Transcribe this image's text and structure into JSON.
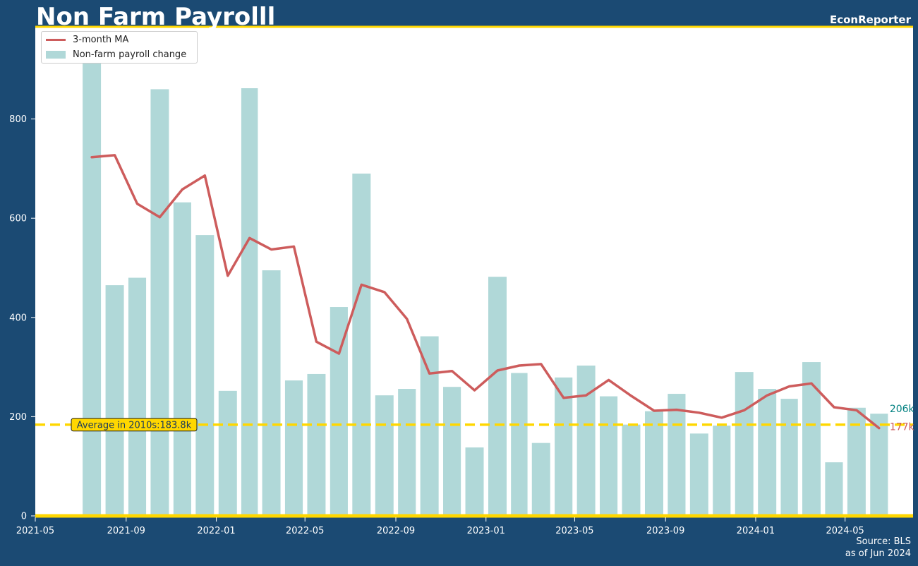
{
  "header": {
    "title": "Non Farm Payrolll",
    "brand": "EconReporter"
  },
  "footer": {
    "source": "Source: BLS",
    "asof": "as of Jun 2024"
  },
  "colors": {
    "background": "#1b4a73",
    "plot_area": "#ffffff",
    "bars": "#b0d8d8",
    "moving_average": "#cd5c5c",
    "average_line": "#ffd700",
    "last_bar_label": "#008080",
    "last_ma_label": "#cd5c5c"
  },
  "chart_data": {
    "type": "bar",
    "title": "Non Farm Payrolll",
    "xlabel": "",
    "ylabel": "",
    "ylim": [
      0,
      970
    ],
    "yticks": [
      0,
      200,
      400,
      600,
      800
    ],
    "xlim": [
      "2021-05-01",
      "2024-08-01"
    ],
    "xticks": [
      "2021-05",
      "2021-09",
      "2022-01",
      "2022-05",
      "2022-09",
      "2023-01",
      "2023-05",
      "2023-09",
      "2024-01",
      "2024-05"
    ],
    "grid": false,
    "legend_position": "top-left",
    "categories": [
      "2021-07",
      "2021-08",
      "2021-09",
      "2021-10",
      "2021-11",
      "2021-12",
      "2022-01",
      "2022-02",
      "2022-03",
      "2022-04",
      "2022-05",
      "2022-06",
      "2022-07",
      "2022-08",
      "2022-09",
      "2022-10",
      "2022-11",
      "2022-12",
      "2023-01",
      "2023-02",
      "2023-03",
      "2023-04",
      "2023-05",
      "2023-06",
      "2023-07",
      "2023-08",
      "2023-09",
      "2023-10",
      "2023-11",
      "2023-12",
      "2024-01",
      "2024-02",
      "2024-03",
      "2024-04",
      "2024-05",
      "2024-06"
    ],
    "series": [
      {
        "name": "Non-farm payroll change",
        "type": "bar",
        "values": [
          1000,
          465,
          480,
          860,
          632,
          566,
          252,
          862,
          495,
          273,
          286,
          421,
          690,
          243,
          256,
          362,
          260,
          138,
          482,
          288,
          147,
          279,
          303,
          241,
          184,
          211,
          246,
          166,
          182,
          290,
          256,
          236,
          310,
          108,
          218,
          206
        ]
      },
      {
        "name": "3-month MA",
        "type": "line",
        "values": [
          723,
          727,
          629,
          602,
          658,
          686,
          484,
          560,
          537,
          543,
          351,
          327,
          466,
          451,
          397,
          287,
          292,
          253,
          293,
          303,
          306,
          238,
          243,
          274,
          242,
          212,
          214,
          208,
          198,
          213,
          243,
          261,
          267,
          219,
          213,
          177
        ]
      }
    ],
    "reference_line": {
      "value": 183.8,
      "label": "Average in 2010s:183.8k"
    },
    "end_labels": {
      "bar": "206k",
      "ma": "177k"
    }
  }
}
